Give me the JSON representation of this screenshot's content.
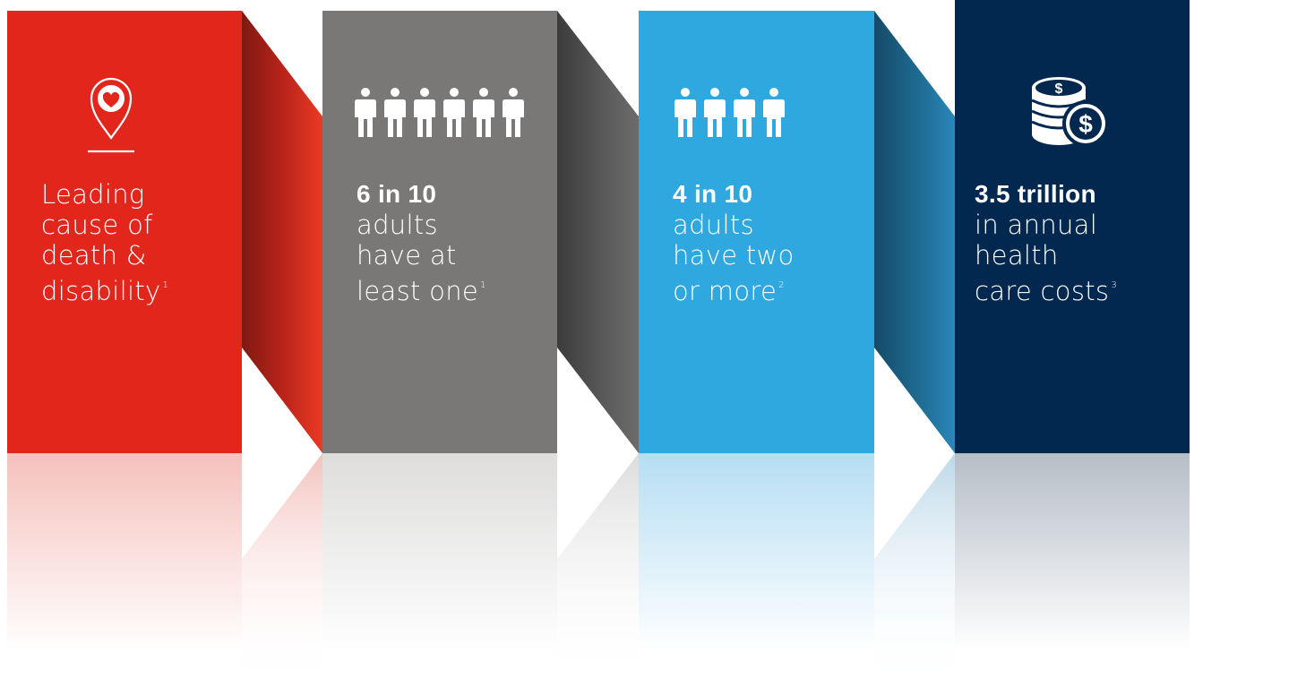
{
  "panels": [
    {
      "stat": "",
      "lines": [
        "Leading",
        "cause of",
        "death &",
        "disability"
      ],
      "footnote": "1",
      "icon": "heart-location-pin-icon",
      "color": "#e3261b"
    },
    {
      "stat": "6 in 10",
      "lines": [
        "adults",
        "have at",
        "least one"
      ],
      "footnote": "1",
      "icon": "people-icon",
      "people_count": 6,
      "color": "#7a7877"
    },
    {
      "stat": "4 in 10",
      "lines": [
        "adults",
        "have two",
        "or more"
      ],
      "footnote": "2",
      "icon": "people-icon",
      "people_count": 4,
      "color": "#2ea8df"
    },
    {
      "stat": "3.5 trillion",
      "lines": [
        "in annual",
        "health",
        "care costs"
      ],
      "footnote": "3",
      "icon": "coin-stack-dollar-icon",
      "color": "#02284f"
    }
  ]
}
